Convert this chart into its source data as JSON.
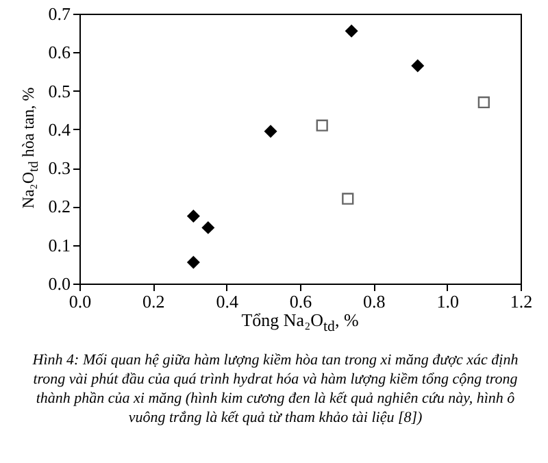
{
  "chart_data": {
    "type": "scatter",
    "xlabel": "Tổng Na₂O$_{td}$, %",
    "ylabel": "Na₂O$_{td}$ hòa tan, %",
    "series": [
      {
        "color": "#000000",
        "marker": "diamond",
        "x": [
          0.31,
          0.31,
          0.35,
          0.52,
          0.74,
          0.92
        ],
        "values": [
          0.175,
          0.055,
          0.145,
          0.395,
          0.655,
          0.565
        ]
      },
      {
        "color": "#666666",
        "marker": "square",
        "x": [
          0.66,
          0.73,
          1.1
        ],
        "values": [
          0.41,
          0.22,
          0.47
        ]
      }
    ],
    "xlim": [
      0,
      1.2
    ],
    "xticks": [
      {
        "value": 0,
        "label": "0.0"
      },
      {
        "value": 0.2,
        "label": "0.2"
      },
      {
        "value": 0.4,
        "label": "0.4"
      },
      {
        "value": 0.6,
        "label": "0.6"
      },
      {
        "value": 0.8,
        "label": "0.8"
      },
      {
        "value": 1,
        "label": "1.0"
      },
      {
        "value": 1.2,
        "label": "1.2"
      }
    ],
    "ylim": [
      0,
      0.7
    ],
    "yticks": [
      {
        "value": 0,
        "label": "0.0"
      },
      {
        "value": 0.1,
        "label": "0.1"
      },
      {
        "value": 0.2,
        "label": "0.2"
      },
      {
        "value": 0.3,
        "label": "0.3"
      },
      {
        "value": 0.4,
        "label": "0.4"
      },
      {
        "value": 0.5,
        "label": "0.5"
      },
      {
        "value": 0.6,
        "label": "0.6"
      },
      {
        "value": 0.7,
        "label": "0.7"
      }
    ],
    "grid": false,
    "annotations": [
      "Hình 4: Mối quan hệ giữa hàm lượng kiềm hòa tan trong xi măng được xác định trong vài phút đầu của quá trình hydrat hóa và hàm lượng kiềm tổng cộng trong thành phần của xi măng (hình kim cương đen là kết quả nghiên cứu này, hình ô vuông trắng là kết quả từ tham khảo tài liệu [8])"
    ]
  }
}
